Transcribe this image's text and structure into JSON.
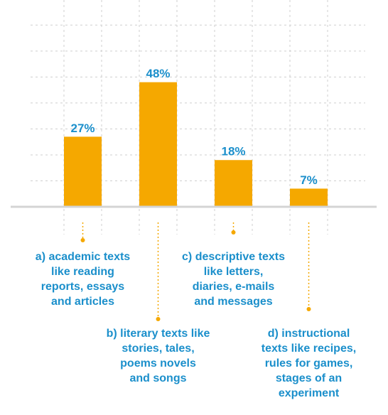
{
  "chart_data": {
    "type": "bar",
    "categories": [
      [
        "a) academic texts",
        "like reading",
        "reports, essays",
        "and articles"
      ],
      [
        "b) literary texts like",
        "stories, tales,",
        "poems novels",
        "and songs"
      ],
      [
        "c) descriptive texts",
        "like letters,",
        "diaries, e-mails",
        "and messages"
      ],
      [
        "d) instructional",
        "texts like recipes,",
        "rules for games,",
        "stages of an",
        "experiment"
      ]
    ],
    "values": [
      27,
      48,
      18,
      7
    ],
    "value_labels": [
      "27%",
      "48%",
      "18%",
      "7%"
    ],
    "color": "#f5a800",
    "label_color": "#1b8fcb",
    "ylim": [
      0,
      72
    ],
    "yticks": [
      10,
      20,
      30,
      40,
      50,
      60,
      70
    ],
    "grid": true
  }
}
